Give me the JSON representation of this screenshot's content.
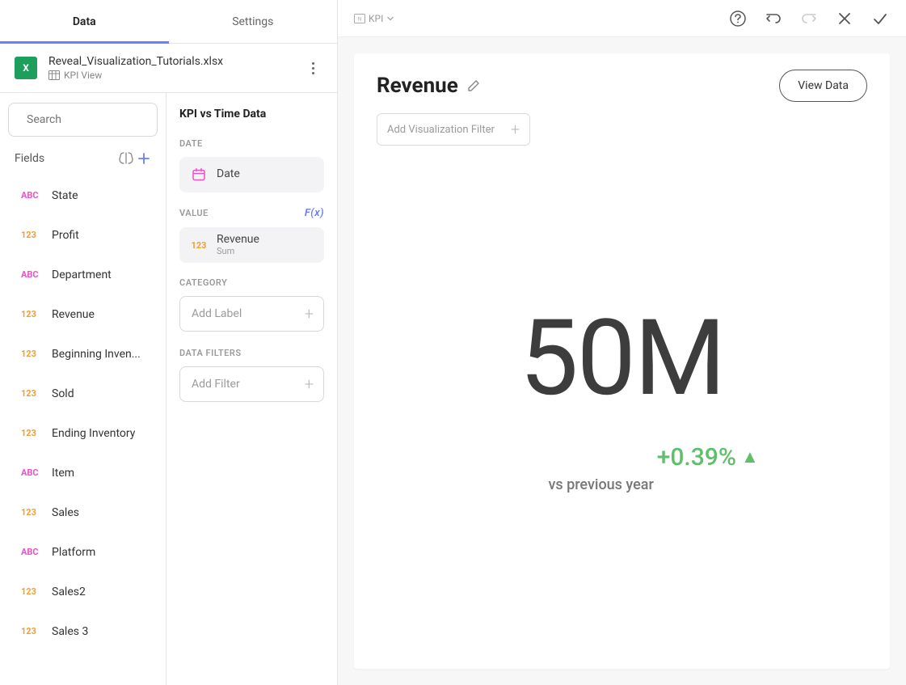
{
  "tabs": {
    "data": "Data",
    "settings": "Settings",
    "active": "data"
  },
  "datasource": {
    "name": "Reveal_Visualization_Tutorials.xlsx",
    "sheet": "KPI View"
  },
  "search": {
    "placeholder": "Search"
  },
  "fields_header": {
    "label": "Fields"
  },
  "fields": [
    {
      "type": "ABC",
      "name": "State"
    },
    {
      "type": "123",
      "name": "Profit"
    },
    {
      "type": "ABC",
      "name": "Department"
    },
    {
      "type": "123",
      "name": "Revenue"
    },
    {
      "type": "123",
      "name": "Beginning Inven..."
    },
    {
      "type": "123",
      "name": "Sold"
    },
    {
      "type": "123",
      "name": "Ending Inventory"
    },
    {
      "type": "ABC",
      "name": "Item"
    },
    {
      "type": "123",
      "name": "Sales"
    },
    {
      "type": "ABC",
      "name": "Platform"
    },
    {
      "type": "123",
      "name": "Sales2"
    },
    {
      "type": "123",
      "name": "Sales 3"
    }
  ],
  "config": {
    "title": "KPI vs Time Data",
    "date_section": "DATE",
    "date_field": "Date",
    "value_section": "VALUE",
    "fx": "F(x)",
    "value_field": "Revenue",
    "value_agg": "Sum",
    "category_section": "CATEGORY",
    "category_placeholder": "Add Label",
    "filters_section": "DATA FILTERS",
    "filters_placeholder": "Add Filter"
  },
  "topbar": {
    "viz_type": "KPI"
  },
  "viz": {
    "title": "Revenue",
    "view_data_btn": "View Data",
    "filter_placeholder": "Add Visualization Filter",
    "kpi_value": "50M",
    "delta_value": "+0.39%",
    "delta_direction": "up",
    "comparison_label": "vs previous year"
  },
  "colors": {
    "accent": "#6c7cff",
    "delta_positive": "#5fbf6b",
    "type_abc": "#e754c4",
    "type_num": "#f0a030",
    "date_icon": "#e754c4",
    "excel": "#1d9e5a"
  }
}
